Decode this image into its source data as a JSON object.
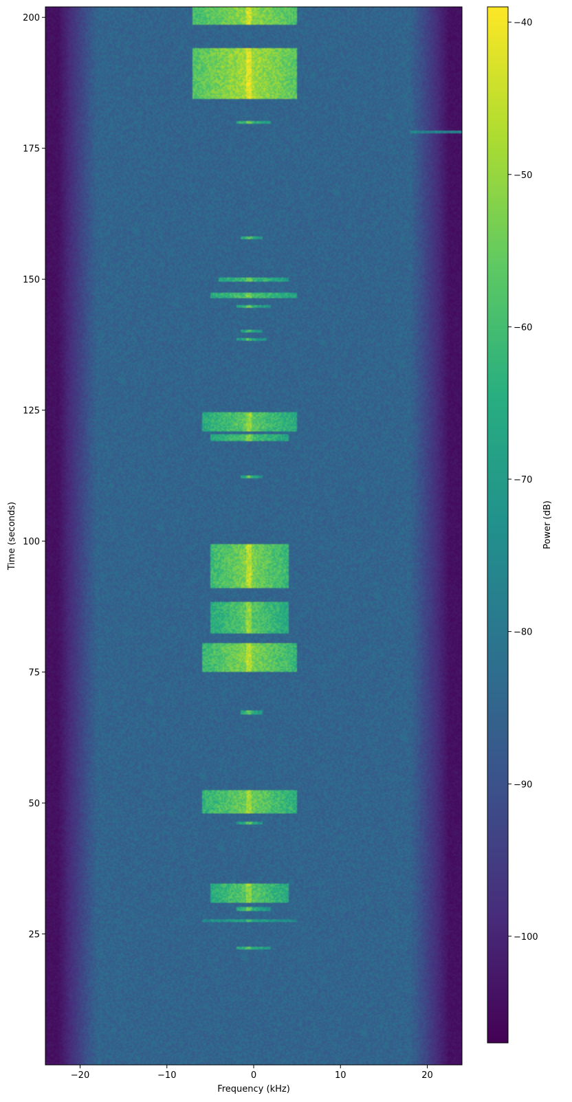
{
  "chart_data": {
    "type": "heatmap",
    "subtype": "spectrogram",
    "colormap": "viridis",
    "xlabel": "Frequency (kHz)",
    "ylabel": "Time (seconds)",
    "colorbar_label": "Power (dB)",
    "xlim": [
      -24,
      24
    ],
    "ylim": [
      0,
      202
    ],
    "clim": [
      -107,
      -39
    ],
    "x_ticks": [
      -20,
      -10,
      0,
      10,
      20
    ],
    "y_ticks": [
      25,
      50,
      75,
      100,
      125,
      150,
      175,
      200
    ],
    "colorbar_ticks": [
      -40,
      -50,
      -60,
      -70,
      -80,
      -90,
      -100
    ],
    "x_tick_labels": [
      "−20",
      "−10",
      "0",
      "10",
      "20"
    ],
    "y_tick_labels": [
      "25",
      "50",
      "75",
      "100",
      "125",
      "150",
      "175",
      "200"
    ],
    "colorbar_tick_labels": [
      "−40",
      "−50",
      "−60",
      "−70",
      "−80",
      "−90",
      "−100"
    ],
    "background_level_db": -85,
    "band_edge_db": -104,
    "carrier_khz": -0.6,
    "signal_bursts": [
      {
        "t0": 198.5,
        "t1": 202,
        "f0": -7,
        "f1": 5,
        "peak_db": -50
      },
      {
        "t0": 184.5,
        "t1": 194,
        "f0": -7,
        "f1": 5,
        "peak_db": -48
      },
      {
        "t0": 179.7,
        "t1": 180.3,
        "f0": -2,
        "f1": 2,
        "peak_db": -60
      },
      {
        "t0": 177.8,
        "t1": 178.5,
        "f0": 18,
        "f1": 24,
        "peak_db": -68
      },
      {
        "t0": 157.6,
        "t1": 158.2,
        "f0": -1.5,
        "f1": 1,
        "peak_db": -62
      },
      {
        "t0": 149.5,
        "t1": 150.3,
        "f0": -4,
        "f1": 4,
        "peak_db": -60
      },
      {
        "t0": 146.5,
        "t1": 147.5,
        "f0": -5,
        "f1": 5,
        "peak_db": -58
      },
      {
        "t0": 144.5,
        "t1": 145.2,
        "f0": -2,
        "f1": 2,
        "peak_db": -62
      },
      {
        "t0": 139.7,
        "t1": 140.3,
        "f0": -1.5,
        "f1": 1,
        "peak_db": -64
      },
      {
        "t0": 138.2,
        "t1": 138.8,
        "f0": -2,
        "f1": 1.5,
        "peak_db": -64
      },
      {
        "t0": 121,
        "t1": 124.5,
        "f0": -6,
        "f1": 5,
        "peak_db": -56
      },
      {
        "t0": 119.2,
        "t1": 120.5,
        "f0": -5,
        "f1": 4,
        "peak_db": -58
      },
      {
        "t0": 112,
        "t1": 112.6,
        "f0": -1.5,
        "f1": 1,
        "peak_db": -62
      },
      {
        "t0": 91,
        "t1": 99.5,
        "f0": -5,
        "f1": 4,
        "peak_db": -52
      },
      {
        "t0": 82.5,
        "t1": 88.5,
        "f0": -5,
        "f1": 4,
        "peak_db": -56
      },
      {
        "t0": 75,
        "t1": 80.5,
        "f0": -6,
        "f1": 5,
        "peak_db": -52
      },
      {
        "t0": 67,
        "t1": 67.6,
        "f0": -1.5,
        "f1": 1,
        "peak_db": -62
      },
      {
        "t0": 48,
        "t1": 52.5,
        "f0": -6,
        "f1": 5,
        "peak_db": -54
      },
      {
        "t0": 45.8,
        "t1": 46.4,
        "f0": -2,
        "f1": 1,
        "peak_db": -62
      },
      {
        "t0": 31,
        "t1": 34.5,
        "f0": -5,
        "f1": 4,
        "peak_db": -56
      },
      {
        "t0": 29.5,
        "t1": 30.2,
        "f0": -2,
        "f1": 2,
        "peak_db": -62
      },
      {
        "t0": 27.2,
        "t1": 27.8,
        "f0": -6,
        "f1": 5,
        "peak_db": -66
      },
      {
        "t0": 22,
        "t1": 22.6,
        "f0": -2,
        "f1": 2,
        "peak_db": -62
      }
    ]
  }
}
